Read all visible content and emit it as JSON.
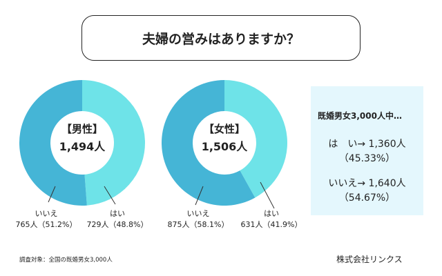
{
  "title": "夫婦の営みはありますか？",
  "colors": {
    "yes": "#6ee3e8",
    "no": "#45b5d6"
  },
  "chart_data": [
    {
      "type": "pie",
      "donut": true,
      "center_label": "【男性】",
      "center_total": "1,494人",
      "slices": [
        {
          "label": "はい",
          "count": 729,
          "value_text": "729人（48.8%）",
          "percent": 48.8
        },
        {
          "label": "いいえ",
          "count": 765,
          "value_text": "765人（51.2%）",
          "percent": 51.2
        }
      ]
    },
    {
      "type": "pie",
      "donut": true,
      "center_label": "【女性】",
      "center_total": "1,506人",
      "slices": [
        {
          "label": "はい",
          "count": 631,
          "value_text": "631人（41.9%）",
          "percent": 41.9
        },
        {
          "label": "いいえ",
          "count": 875,
          "value_text": "875人（58.1%）",
          "percent": 58.1
        }
      ]
    }
  ],
  "summary": {
    "heading": "既婚男女3,000人中…",
    "yes_line": "は　い→ 1,360人",
    "yes_pct": "（45.33%）",
    "no_line": "いいえ→ 1,640人",
    "no_pct": "（54.67%）"
  },
  "footer": {
    "survey": "調査対象：全国の既婚男女3,000人",
    "company": "株式会社リンクス"
  }
}
